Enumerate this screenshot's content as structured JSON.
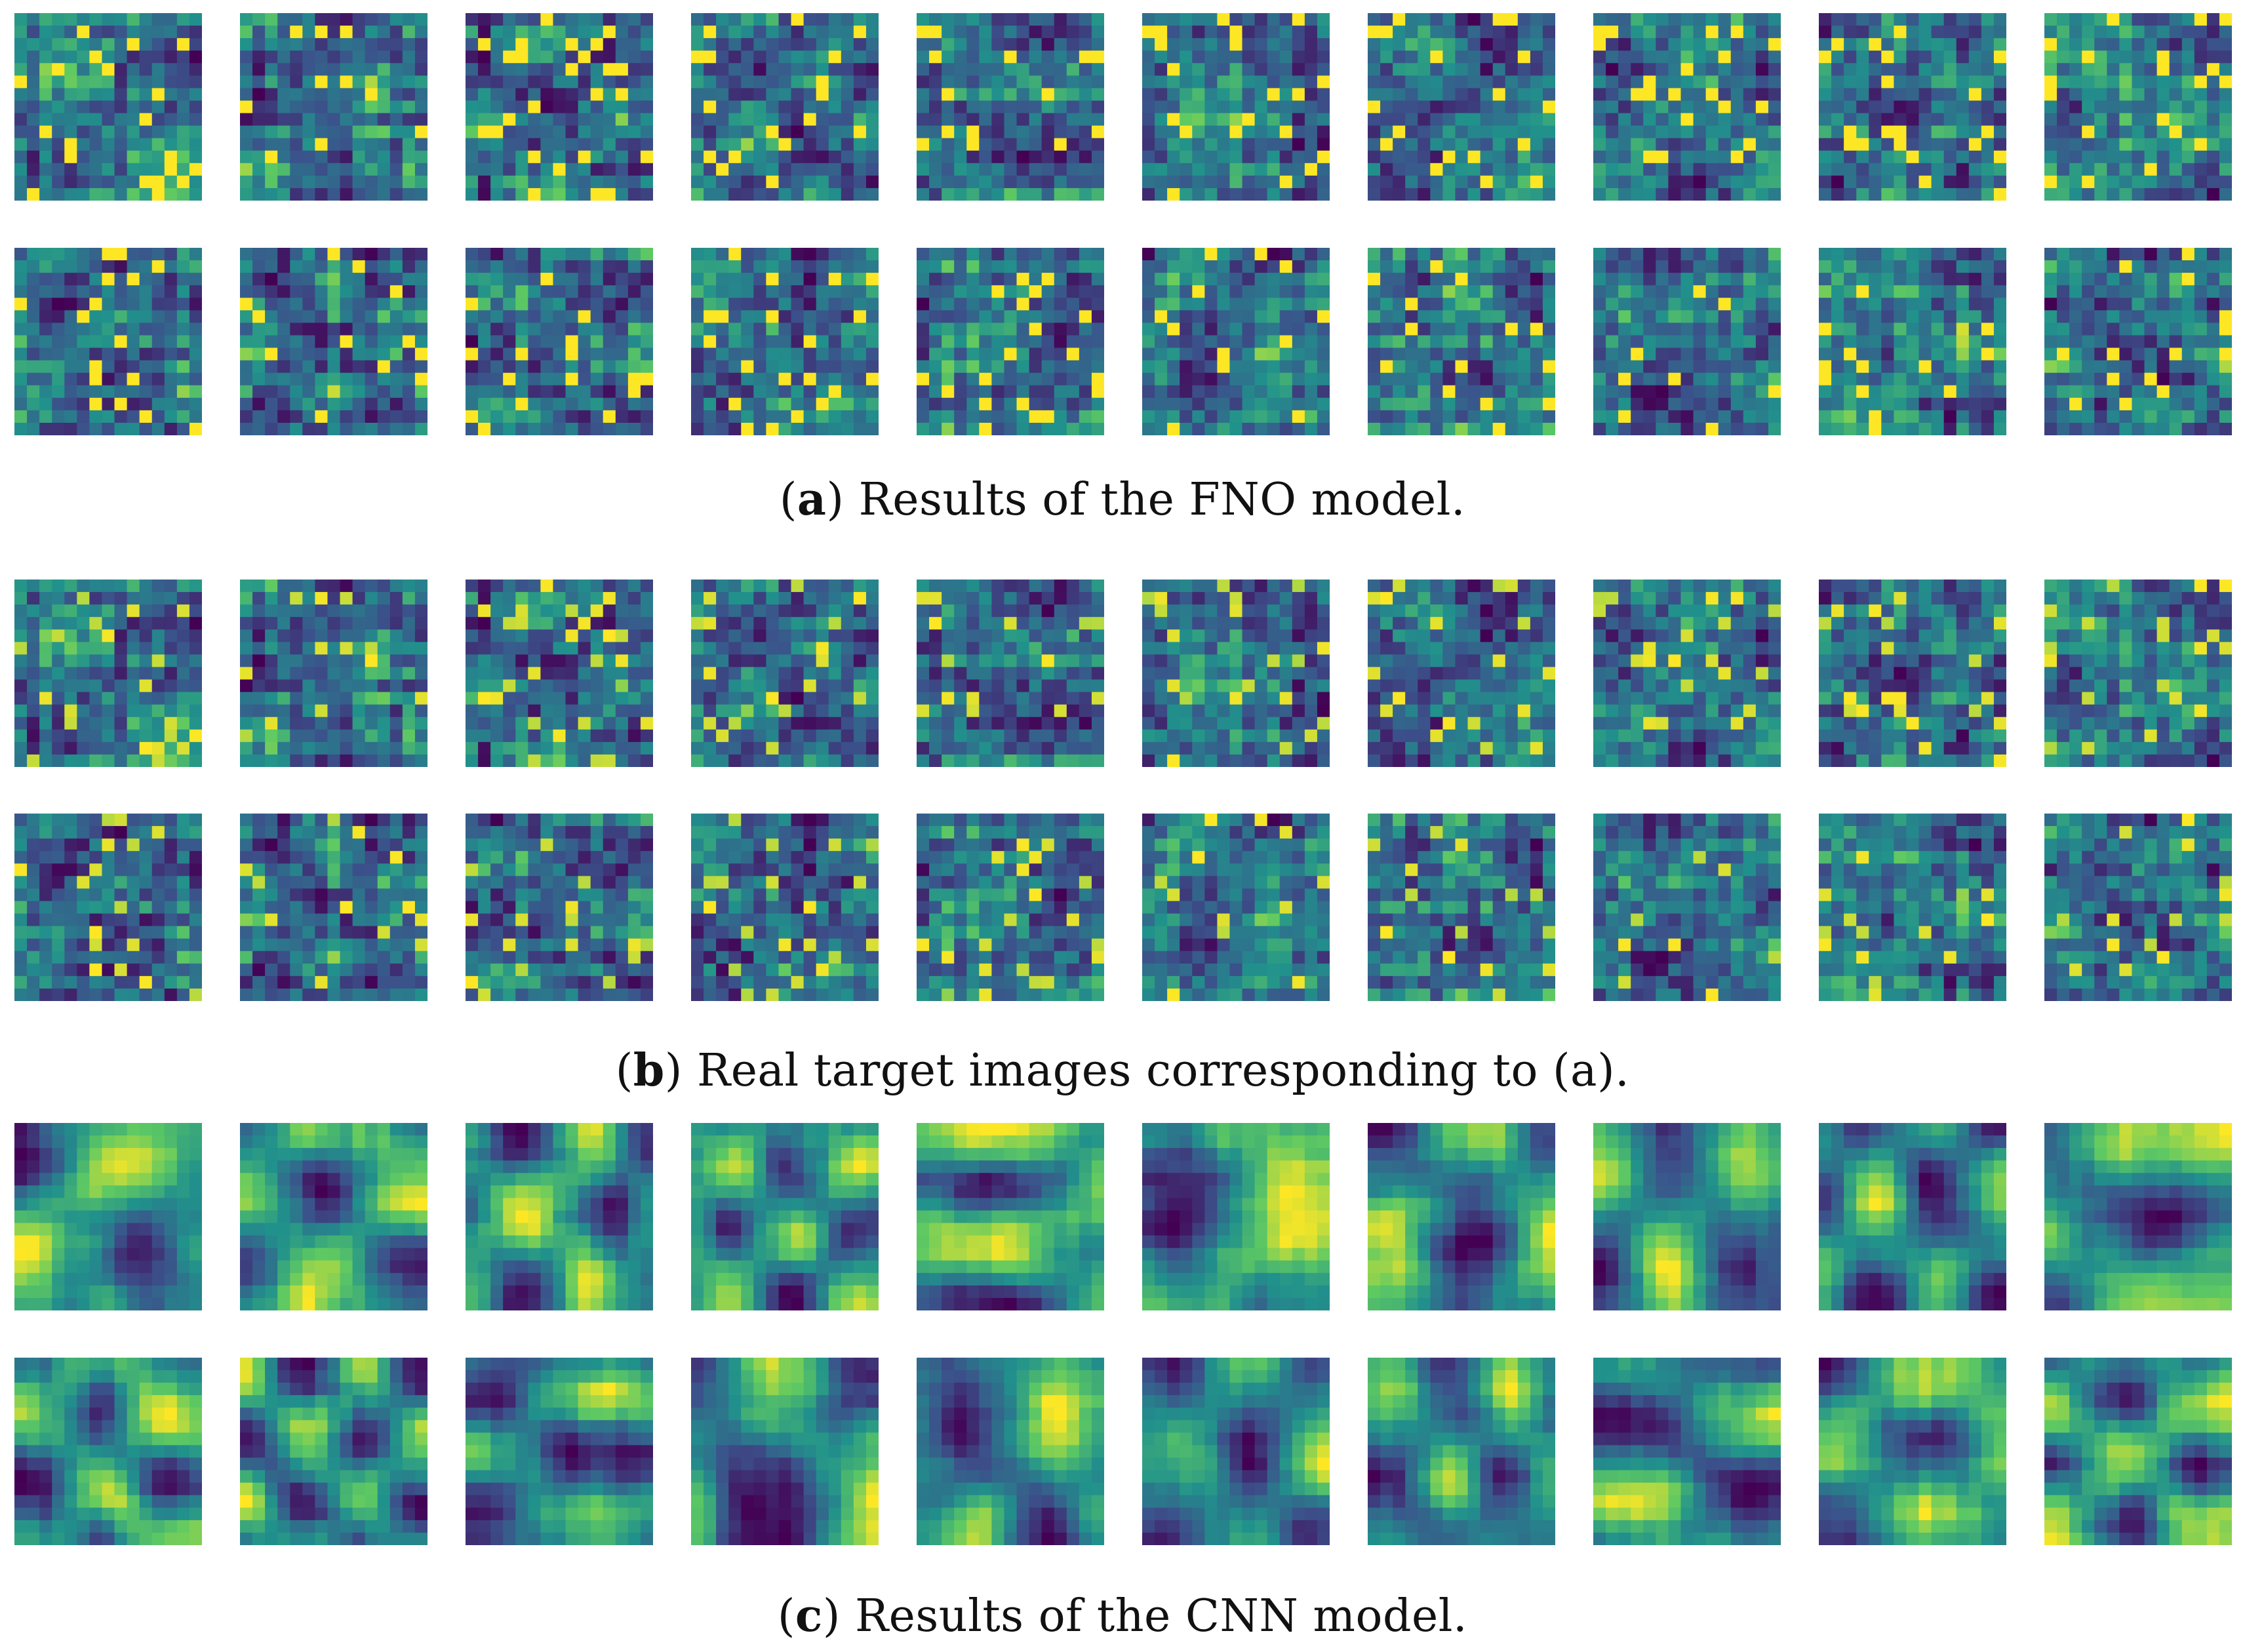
{
  "figure": {
    "panels": [
      {
        "id": "a",
        "caption_letter": "a",
        "caption_text": ") Results of the FNO model.",
        "content": "FNO model predictions, 2 rows x 10 heatmaps"
      },
      {
        "id": "b",
        "caption_letter": "b",
        "caption_text": ") Real target images corresponding to (a).",
        "content": "ground-truth targets, 2 rows x 10 heatmaps"
      },
      {
        "id": "c",
        "caption_letter": "c",
        "caption_text": ") Results of the CNN model.",
        "content": "CNN model predictions, 2 rows x 10 heatmaps"
      }
    ],
    "colormap": [
      "#440154",
      "#3b528b",
      "#21918c",
      "#5ec962",
      "#fde725"
    ]
  },
  "chart_data": {
    "type": "heatmap",
    "grid": "3 panels x 2 rows x 10 images, each about 15x15 cells",
    "colormap": "viridis",
    "title": "",
    "xlabel": "",
    "ylabel": ""
  }
}
